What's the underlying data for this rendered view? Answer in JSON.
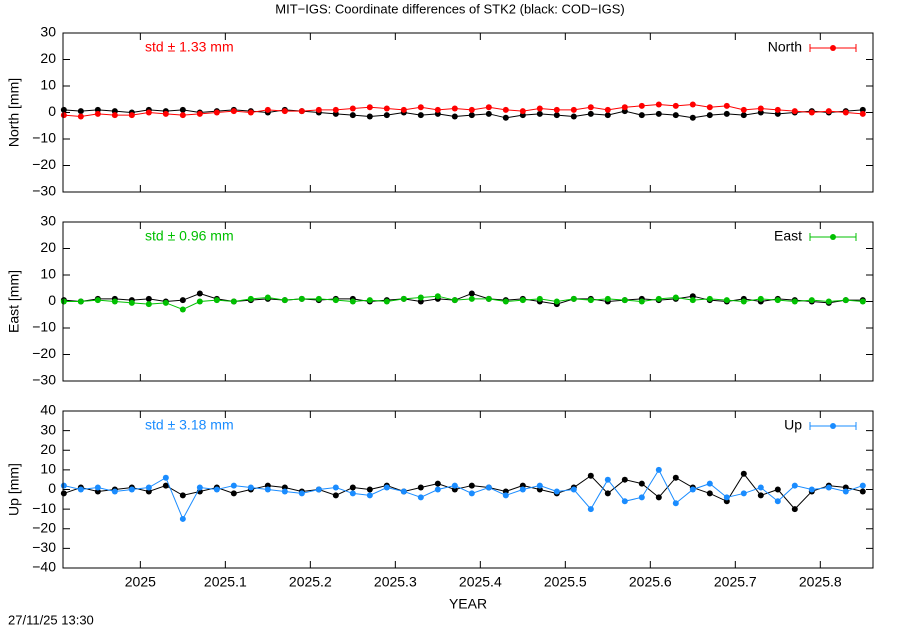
{
  "title": "MIT−IGS: Coordinate differences of STK2 (black: COD−IGS)",
  "timestamp": "27/11/25 13:30",
  "chart_data": [
    {
      "type": "line",
      "ylabel": "North [mm]",
      "annotation": "std ± 1.33 mm",
      "legend": "top-right",
      "xlim": [
        2024.909,
        2025.862
      ],
      "ylim": [
        -30,
        30
      ],
      "yticks": [
        {
          "value": -30,
          "label": "−30"
        },
        {
          "value": -20,
          "label": "−20"
        },
        {
          "value": -10,
          "label": "−10"
        },
        0,
        10,
        20,
        30
      ],
      "x": [
        2024.91,
        2024.93,
        2024.95,
        2024.97,
        2024.99,
        2025.01,
        2025.03,
        2025.05,
        2025.07,
        2025.09,
        2025.11,
        2025.13,
        2025.15,
        2025.17,
        2025.19,
        2025.21,
        2025.23,
        2025.25,
        2025.27,
        2025.29,
        2025.31,
        2025.33,
        2025.35,
        2025.37,
        2025.39,
        2025.41,
        2025.43,
        2025.45,
        2025.47,
        2025.49,
        2025.51,
        2025.53,
        2025.55,
        2025.57,
        2025.59,
        2025.61,
        2025.63,
        2025.65,
        2025.67,
        2025.69,
        2025.71,
        2025.73,
        2025.75,
        2025.77,
        2025.79,
        2025.81,
        2025.83,
        2025.85
      ],
      "series": [
        {
          "color": "#000000",
          "values": [
            1,
            0.5,
            1,
            0.5,
            0,
            1,
            0.5,
            1,
            0,
            0.5,
            1,
            0.5,
            0,
            1,
            0.5,
            0,
            -0.5,
            -1,
            -1.5,
            -1,
            0,
            -1,
            -0.5,
            -1.5,
            -1,
            -0.5,
            -2,
            -1,
            -0.5,
            -1,
            -1.5,
            -0.5,
            -1,
            0.5,
            -1,
            -0.5,
            -1,
            -2,
            -1,
            -0.5,
            -1,
            0,
            -0.5,
            0,
            0.5,
            0,
            0.5,
            1
          ]
        },
        {
          "name": "North",
          "color": "#ff0000",
          "values": [
            -1,
            -1.5,
            -0.5,
            -1,
            -1,
            0,
            -0.5,
            -1,
            -0.5,
            0,
            0.5,
            0,
            1,
            0.5,
            0.5,
            1,
            1,
            1.5,
            2,
            1.5,
            1,
            2,
            1,
            1.5,
            1,
            2,
            1,
            0.5,
            1.5,
            1,
            1,
            2,
            1,
            2,
            2.5,
            3,
            2.5,
            3,
            2,
            2.5,
            1,
            1.5,
            1,
            0.5,
            0,
            0.5,
            0,
            -0.5
          ]
        }
      ]
    },
    {
      "type": "line",
      "ylabel": "East [mm]",
      "annotation": "std ± 0.96 mm",
      "legend": "top-right",
      "xlim": [
        2024.909,
        2025.862
      ],
      "ylim": [
        -30,
        30
      ],
      "yticks": [
        {
          "value": -30,
          "label": "−30"
        },
        {
          "value": -20,
          "label": "−20"
        },
        {
          "value": -10,
          "label": "−10"
        },
        0,
        10,
        20,
        30
      ],
      "x": [
        2024.91,
        2024.93,
        2024.95,
        2024.97,
        2024.99,
        2025.01,
        2025.03,
        2025.05,
        2025.07,
        2025.09,
        2025.11,
        2025.13,
        2025.15,
        2025.17,
        2025.19,
        2025.21,
        2025.23,
        2025.25,
        2025.27,
        2025.29,
        2025.31,
        2025.33,
        2025.35,
        2025.37,
        2025.39,
        2025.41,
        2025.43,
        2025.45,
        2025.47,
        2025.49,
        2025.51,
        2025.53,
        2025.55,
        2025.57,
        2025.59,
        2025.61,
        2025.63,
        2025.65,
        2025.67,
        2025.69,
        2025.71,
        2025.73,
        2025.75,
        2025.77,
        2025.79,
        2025.81,
        2025.83,
        2025.85
      ],
      "series": [
        {
          "color": "#000000",
          "values": [
            0.5,
            0,
            1,
            1,
            0.5,
            1,
            0,
            0.5,
            3,
            1,
            0,
            0.5,
            1,
            0.5,
            1,
            0.5,
            1,
            1,
            0,
            0.5,
            1,
            0,
            1,
            0.5,
            3,
            1,
            0.5,
            1,
            0,
            -1,
            1,
            1,
            0,
            0.5,
            1,
            0.5,
            1,
            2,
            0.5,
            0,
            1,
            0,
            1,
            0.5,
            0,
            -0.5,
            0.5,
            0.5
          ]
        },
        {
          "name": "East",
          "color": "#00c000",
          "values": [
            0,
            0,
            0.5,
            0,
            -0.5,
            -1,
            -0.5,
            -3,
            0,
            0.5,
            0,
            1,
            1.5,
            0.5,
            1,
            1,
            0.5,
            0,
            0.5,
            0,
            1,
            1.5,
            2,
            0.5,
            1,
            1,
            0,
            0.5,
            1,
            0,
            1,
            0.5,
            1,
            0.5,
            0,
            1,
            1.5,
            0.5,
            1,
            0.5,
            0,
            1,
            0.5,
            0,
            0.5,
            0,
            0.5,
            0
          ]
        }
      ]
    },
    {
      "type": "line",
      "ylabel": "Up [mm]",
      "annotation": "std ± 3.18 mm",
      "legend": "top-right",
      "xlabel": "YEAR",
      "xlim": [
        2024.909,
        2025.862
      ],
      "ylim": [
        -40,
        40
      ],
      "xticks": [
        2025,
        2025.1,
        2025.2,
        2025.3,
        2025.4,
        2025.5,
        2025.6,
        2025.7,
        2025.8
      ],
      "yticks": [
        {
          "value": -40,
          "label": "−40"
        },
        {
          "value": -30,
          "label": "−30"
        },
        {
          "value": -20,
          "label": "−20"
        },
        {
          "value": -10,
          "label": "−10"
        },
        0,
        10,
        20,
        30,
        40
      ],
      "x": [
        2024.91,
        2024.93,
        2024.95,
        2024.97,
        2024.99,
        2025.01,
        2025.03,
        2025.05,
        2025.07,
        2025.09,
        2025.11,
        2025.13,
        2025.15,
        2025.17,
        2025.19,
        2025.21,
        2025.23,
        2025.25,
        2025.27,
        2025.29,
        2025.31,
        2025.33,
        2025.35,
        2025.37,
        2025.39,
        2025.41,
        2025.43,
        2025.45,
        2025.47,
        2025.49,
        2025.51,
        2025.53,
        2025.55,
        2025.57,
        2025.59,
        2025.61,
        2025.63,
        2025.65,
        2025.67,
        2025.69,
        2025.71,
        2025.73,
        2025.75,
        2025.77,
        2025.79,
        2025.81,
        2025.83,
        2025.85
      ],
      "series": [
        {
          "color": "#000000",
          "values": [
            -2,
            1,
            -1,
            0,
            1,
            -1,
            2,
            -3,
            -1,
            1,
            -2,
            0,
            2,
            1,
            -1,
            0,
            -3,
            1,
            0,
            2,
            -1,
            1,
            3,
            0,
            2,
            1,
            -1,
            2,
            0,
            -2,
            1,
            7,
            -2,
            5,
            3,
            -4,
            6,
            1,
            -2,
            -6,
            8,
            -3,
            0,
            -10,
            -1,
            2,
            1,
            -1
          ]
        },
        {
          "name": "Up",
          "color": "#1a8cff",
          "values": [
            2,
            0,
            1,
            -1,
            0,
            1,
            6,
            -15,
            1,
            0,
            2,
            1,
            0,
            -1,
            -2,
            0,
            1,
            -2,
            -3,
            1,
            -1,
            -4,
            0,
            2,
            -2,
            1,
            -3,
            0,
            2,
            -1,
            0,
            -10,
            5,
            -6,
            -4,
            10,
            -7,
            0,
            3,
            -4,
            -2,
            1,
            -6,
            2,
            0,
            1,
            -1,
            2
          ]
        }
      ]
    }
  ]
}
